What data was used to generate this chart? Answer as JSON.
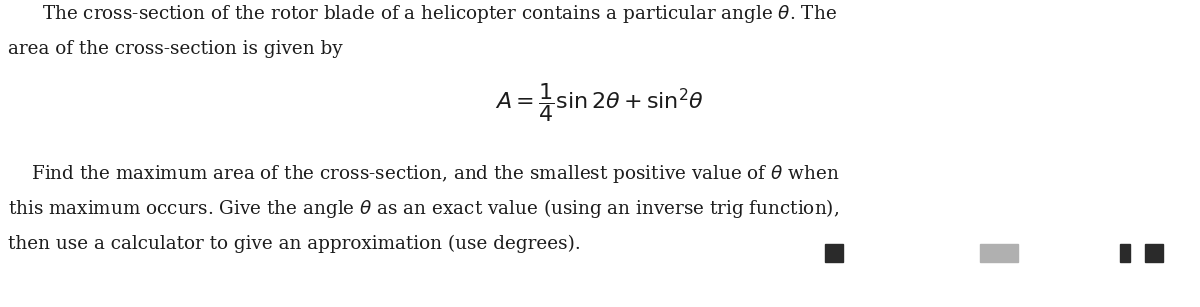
{
  "background_color": "#ffffff",
  "figsize": [
    12.0,
    3.07
  ],
  "dpi": 100,
  "paragraph1_line1": "The cross-section of the rotor blade of a helicopter contains a particular angle $\\theta$. The",
  "paragraph1_line2": "area of the cross-section is given by",
  "formula": "$A = \\dfrac{1}{4}\\sin 2\\theta + \\sin^2\\!\\theta$",
  "paragraph2_line1": "    Find the maximum area of the cross-section, and the smallest positive value of $\\theta$ when",
  "paragraph2_line2": "this maximum occurs. Give the angle $\\theta$ as an exact value (using an inverse trig function),",
  "paragraph2_line3": "then use a calculator to give an approximation (use degrees).",
  "font_size_body": 13.2,
  "font_size_formula": 16,
  "text_color": "#1c1c1c"
}
